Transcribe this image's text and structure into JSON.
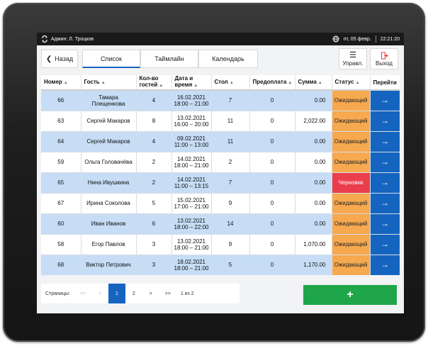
{
  "statusbar": {
    "admin": "Админ: Л. Троцков",
    "date": "пт, 05 февр.",
    "time": "22:21:20"
  },
  "nav": {
    "back_label": "Назад",
    "tabs": [
      {
        "label": "Список",
        "active": true
      },
      {
        "label": "Таймлайн",
        "active": false
      },
      {
        "label": "Календарь",
        "active": false
      }
    ],
    "manage_label": "Управл.",
    "exit_label": "Выход"
  },
  "table": {
    "headers": [
      "Номер",
      "Гость",
      "Кол-во гостей",
      "Дата и время",
      "Стол",
      "Предоплата",
      "Сумма",
      "Статус",
      "Перейти"
    ],
    "rows": [
      {
        "num": "66",
        "guest": "Тамара Плещенкова",
        "count": "4",
        "date": "16.02.2021",
        "time": "18:00 – 21:00",
        "table": "7",
        "prepay": "0",
        "sum": "0.00",
        "status": "Ожидающий",
        "kind": "pending"
      },
      {
        "num": "63",
        "guest": "Сергей Макаров",
        "count": "8",
        "date": "13.02.2021",
        "time": "16:00 – 20:00",
        "table": "11",
        "prepay": "0",
        "sum": "2,022.00",
        "status": "Ожидающий",
        "kind": "pending"
      },
      {
        "num": "64",
        "guest": "Сергей Макаров",
        "count": "4",
        "date": "09.02.2021",
        "time": "11:00 – 13:00",
        "table": "11",
        "prepay": "0",
        "sum": "0.00",
        "status": "Ожидающий",
        "kind": "pending"
      },
      {
        "num": "59",
        "guest": "Ольга Головачёва",
        "count": "2",
        "date": "14.02.2021",
        "time": "18:00 – 21:00",
        "table": "2",
        "prepay": "0",
        "sum": "0.00",
        "status": "Ожидающий",
        "kind": "pending"
      },
      {
        "num": "65",
        "guest": "Нина Ивушкина",
        "count": "2",
        "date": "14.02.2021",
        "time": "11:00 – 13:15",
        "table": "7",
        "prepay": "0",
        "sum": "0.00",
        "status": "Черновик",
        "kind": "draft"
      },
      {
        "num": "67",
        "guest": "Ирина Соколова",
        "count": "5",
        "date": "15.02.2021",
        "time": "17:00 – 21:00",
        "table": "9",
        "prepay": "0",
        "sum": "0.00",
        "status": "Ожидающий",
        "kind": "pending"
      },
      {
        "num": "60",
        "guest": "Иван Иванов",
        "count": "6",
        "date": "13.02.2021",
        "time": "18:00 – 22:00",
        "table": "14",
        "prepay": "0",
        "sum": "0.00",
        "status": "Ожидающий",
        "kind": "pending"
      },
      {
        "num": "58",
        "guest": "Егор Павлов",
        "count": "3",
        "date": "13.02.2021",
        "time": "18:00 – 21:00",
        "table": "9",
        "prepay": "0",
        "sum": "1,070.00",
        "status": "Ожидающий",
        "kind": "pending"
      },
      {
        "num": "68",
        "guest": "Виктор Петрович",
        "count": "3",
        "date": "18.02.2021",
        "time": "18:00 – 21:00",
        "table": "5",
        "prepay": "0",
        "sum": "1,170.00",
        "status": "Ожидающий",
        "kind": "pending"
      }
    ]
  },
  "pager": {
    "label": "Страницы:",
    "first": "<<",
    "prev": "<",
    "pages": [
      "1",
      "2"
    ],
    "current": "1",
    "next": ">",
    "last": ">>",
    "of": "1 из 2"
  },
  "add_label": "+",
  "colors": {
    "accent": "#1565c0",
    "pending": "#f6a94f",
    "draft": "#ea3e4d",
    "add": "#1fa64a",
    "row_blue": "#c6ddf5"
  }
}
